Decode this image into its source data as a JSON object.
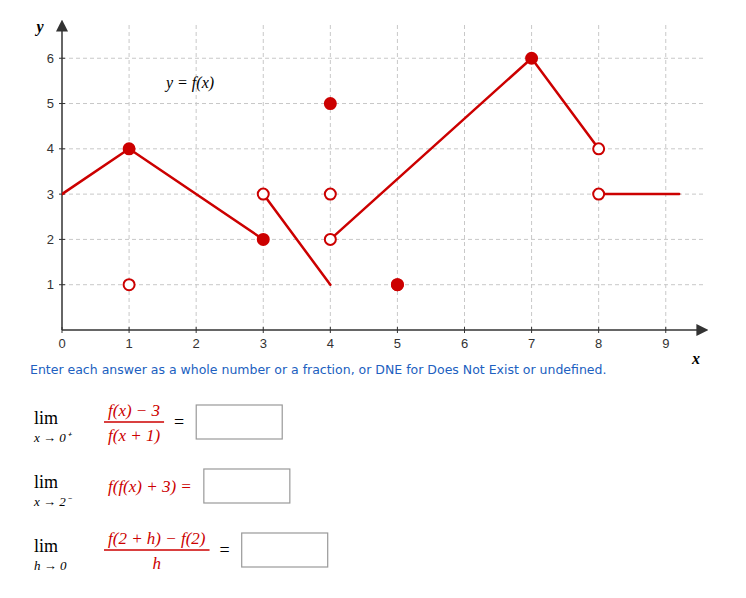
{
  "chart_data": {
    "type": "line",
    "xlabel": "x",
    "ylabel": "y",
    "xlim": [
      0,
      9.6
    ],
    "ylim": [
      0,
      6.8
    ],
    "xticks": [
      0,
      1,
      2,
      3,
      4,
      5,
      6,
      7,
      8,
      9
    ],
    "yticks": [
      1,
      2,
      3,
      4,
      5,
      6
    ],
    "grid": true,
    "series": [
      {
        "x": [
          0,
          1
        ],
        "values": [
          3,
          4
        ],
        "color": "#cc0000"
      },
      {
        "x": [
          1,
          3
        ],
        "values": [
          4,
          2
        ],
        "color": "#cc0000"
      },
      {
        "x": [
          3,
          4
        ],
        "values": [
          3,
          1
        ],
        "color": "#cc0000"
      },
      {
        "x": [
          4,
          7
        ],
        "values": [
          2,
          6
        ],
        "color": "#cc0000"
      },
      {
        "x": [
          7,
          8
        ],
        "values": [
          6,
          4
        ],
        "color": "#cc0000"
      },
      {
        "x": [
          8,
          9.2
        ],
        "values": [
          3,
          3
        ],
        "color": "#cc0000"
      },
      {
        "type": "scatter",
        "marker": "open",
        "color": "#cc0000",
        "x": [
          1,
          3,
          4,
          4,
          5,
          8,
          8
        ],
        "values": [
          1,
          3,
          3,
          2,
          1,
          4,
          3
        ]
      },
      {
        "type": "scatter",
        "marker": "filled",
        "color": "#cc0000",
        "x": [
          1,
          3,
          4,
          5,
          7
        ],
        "values": [
          4,
          2,
          5,
          1,
          6
        ]
      }
    ],
    "annotations": [
      {
        "text": "y = f(x)",
        "x": 1.55,
        "y": 5.65
      }
    ],
    "instruction": {
      "text": "Enter each answer as a whole number or a fraction, or DNE for Does Not Exist or undefined.",
      "color": "#2060c0"
    },
    "limits": [
      {
        "lim": "lim",
        "under": "x → 0⁺",
        "numerator": "f(x) − 3",
        "denominator": "f(x + 1)",
        "equals": "=",
        "color": "#cc0000"
      },
      {
        "lim": "lim",
        "under": "x → 2⁻",
        "expression": "f(f(x) + 3) =",
        "color": "#cc0000"
      },
      {
        "lim": "lim",
        "under": "h → 0",
        "numerator": "f(2 + h) − f(2)",
        "denominator": "h",
        "equals": "=",
        "color": "#cc0000"
      }
    ]
  }
}
